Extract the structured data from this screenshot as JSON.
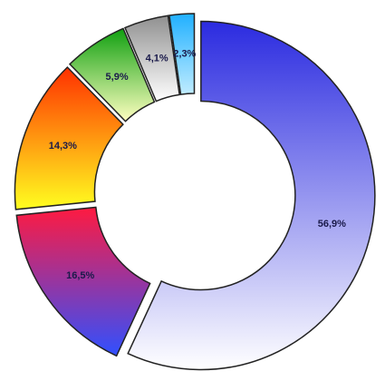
{
  "chart_data": {
    "type": "pie",
    "donut": true,
    "exploded": true,
    "values": [
      56.9,
      16.5,
      14.3,
      5.9,
      4.1,
      2.3
    ],
    "value_labels": [
      "56,9%",
      "16,5%",
      "14,3%",
      "5,9%",
      "4,1%",
      "2,3%"
    ],
    "colors": [
      [
        "#2b2be0",
        "#ffffff"
      ],
      [
        "#ff1a40",
        "#3050ff"
      ],
      [
        "#ff3000",
        "#ffff20"
      ],
      [
        "#10a010",
        "#ffffc0"
      ],
      [
        "#909090",
        "#ffffff"
      ],
      [
        "#20b0ff",
        "#c0ecff"
      ]
    ]
  }
}
